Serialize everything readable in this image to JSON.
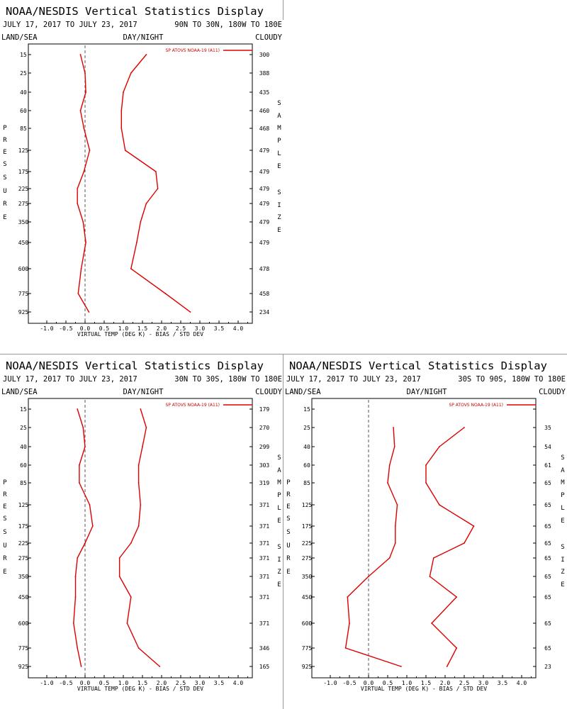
{
  "display_title": "NOAA/NESDIS Vertical Statistics Display",
  "date_range": "JULY 17, 2017 TO JULY 23, 2017",
  "header_labels": {
    "left": "LAND/SEA",
    "center": "DAY/NIGHT",
    "right": "CLOUDY"
  },
  "left_axis_letters": "PRESSURE",
  "right_axis_letters": "SAMPLESIZE",
  "colors": {
    "line": "#dd0000",
    "frame": "#000000",
    "divider": "#999999",
    "zero_line": "#555555"
  },
  "chart_data": [
    {
      "type": "line",
      "region": "90N TO 30N, 180W TO 180E",
      "xlabel": "VIRTUAL TEMP (DEG K) - BIAS / STD DEV",
      "ylabel": "PRESSURE",
      "xlim": [
        -1.5,
        4.0
      ],
      "x_ticks": [
        "-1.0",
        "-0.5",
        "0.0",
        "0.5",
        "1.0",
        "1.5",
        "2.0",
        "2.5",
        "3.0",
        "3.5",
        "4.0"
      ],
      "pressure_levels": [
        "15",
        "25",
        "40",
        "60",
        "85",
        "125",
        "175",
        "225",
        "275",
        "350",
        "450",
        "600",
        "775",
        "925"
      ],
      "sample_size": [
        "300",
        "388",
        "435",
        "460",
        "468",
        "479",
        "479",
        "479",
        "479",
        "479",
        "479",
        "478",
        "458",
        "234"
      ],
      "legend": "SP ATOVS NOAA-19 (A11)",
      "series": [
        {
          "name": "BIAS",
          "values": [
            -0.12,
            0.0,
            0.02,
            -0.12,
            -0.03,
            0.12,
            -0.03,
            -0.2,
            -0.2,
            -0.05,
            0.02,
            -0.1,
            -0.18,
            0.1
          ]
        },
        {
          "name": "STD DEV",
          "values": [
            1.6,
            1.2,
            1.0,
            0.95,
            0.95,
            1.05,
            1.85,
            1.9,
            1.6,
            1.45,
            1.35,
            1.2,
            2.1,
            2.75
          ]
        }
      ]
    },
    {
      "type": "line",
      "region": "30N TO 30S, 180W TO 180E",
      "xlabel": "VIRTUAL TEMP (DEG K) - BIAS / STD DEV",
      "ylabel": "PRESSURE",
      "xlim": [
        -1.5,
        4.0
      ],
      "x_ticks": [
        "-1.0",
        "-0.5",
        "0.0",
        "0.5",
        "1.0",
        "1.5",
        "2.0",
        "2.5",
        "3.0",
        "3.5",
        "4.0"
      ],
      "pressure_levels": [
        "15",
        "25",
        "40",
        "60",
        "85",
        "125",
        "175",
        "225",
        "275",
        "350",
        "450",
        "600",
        "775",
        "925"
      ],
      "sample_size": [
        "179",
        "270",
        "299",
        "303",
        "319",
        "371",
        "371",
        "371",
        "371",
        "371",
        "371",
        "371",
        "346",
        "165"
      ],
      "legend": "SP ATOVS NOAA-19 (A11)",
      "series": [
        {
          "name": "BIAS",
          "values": [
            -0.2,
            -0.05,
            0.0,
            -0.15,
            -0.15,
            0.12,
            0.2,
            0.0,
            -0.2,
            -0.25,
            -0.25,
            -0.3,
            -0.2,
            -0.1
          ]
        },
        {
          "name": "STD DEV",
          "values": [
            1.45,
            1.6,
            1.5,
            1.4,
            1.4,
            1.45,
            1.4,
            1.2,
            0.9,
            0.9,
            1.2,
            1.1,
            1.4,
            1.95
          ]
        }
      ]
    },
    {
      "type": "line",
      "region": "30S TO 90S, 180W TO 180E",
      "xlabel": "VIRTUAL TEMP (DEG K) - BIAS / STD DEV",
      "ylabel": "PRESSURE",
      "xlim": [
        -1.5,
        4.0
      ],
      "x_ticks": [
        "-1.0",
        "-0.5",
        "0.0",
        "0.5",
        "1.0",
        "1.5",
        "2.0",
        "2.5",
        "3.0",
        "3.5",
        "4.0"
      ],
      "pressure_levels": [
        "15",
        "25",
        "40",
        "60",
        "85",
        "125",
        "175",
        "225",
        "275",
        "350",
        "450",
        "600",
        "775",
        "925"
      ],
      "sample_size": [
        "",
        "35",
        "54",
        "61",
        "65",
        "65",
        "65",
        "65",
        "65",
        "65",
        "65",
        "65",
        "65",
        "23"
      ],
      "legend": "SP ATOVS NOAA-19 (A11)",
      "series": [
        {
          "name": "BIAS",
          "values": [
            null,
            0.65,
            0.68,
            0.55,
            0.5,
            0.75,
            0.7,
            0.7,
            0.55,
            0.0,
            -0.55,
            -0.5,
            -0.6,
            0.85
          ]
        },
        {
          "name": "STD DEV",
          "values": [
            null,
            2.5,
            1.85,
            1.5,
            1.5,
            1.85,
            2.75,
            2.5,
            1.7,
            1.6,
            2.3,
            1.65,
            2.3,
            2.05
          ]
        }
      ]
    }
  ]
}
